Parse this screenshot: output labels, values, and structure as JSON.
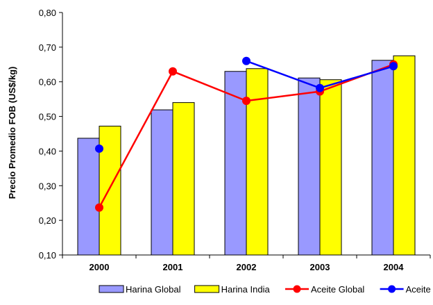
{
  "chart_data": {
    "type": "bar",
    "categories": [
      "2000",
      "2001",
      "2002",
      "2003",
      "2004"
    ],
    "ylabel": "Precio Promedio FOB (US$/kg)",
    "xlabel": "",
    "ylim": [
      0.1,
      0.8
    ],
    "yticks": [
      "0,10",
      "0,20",
      "0,30",
      "0,40",
      "0,50",
      "0,60",
      "0,70",
      "0,80"
    ],
    "grid": false,
    "legend_position": "bottom",
    "series": [
      {
        "name": "Harina Global",
        "type": "bar",
        "color": "#9999ff",
        "values": [
          0.437,
          0.519,
          0.63,
          0.611,
          0.662
        ]
      },
      {
        "name": "Harina India",
        "type": "bar",
        "color": "#ffff00",
        "values": [
          0.472,
          0.54,
          0.638,
          0.606,
          0.675
        ]
      },
      {
        "name": "Aceite Global",
        "type": "line",
        "color": "#ff0000",
        "values": [
          0.237,
          0.63,
          0.545,
          0.572,
          0.65
        ]
      },
      {
        "name": "Aceite India",
        "type": "line",
        "color": "#0000ff",
        "values": [
          0.407,
          null,
          0.66,
          0.582,
          0.645
        ]
      }
    ]
  }
}
